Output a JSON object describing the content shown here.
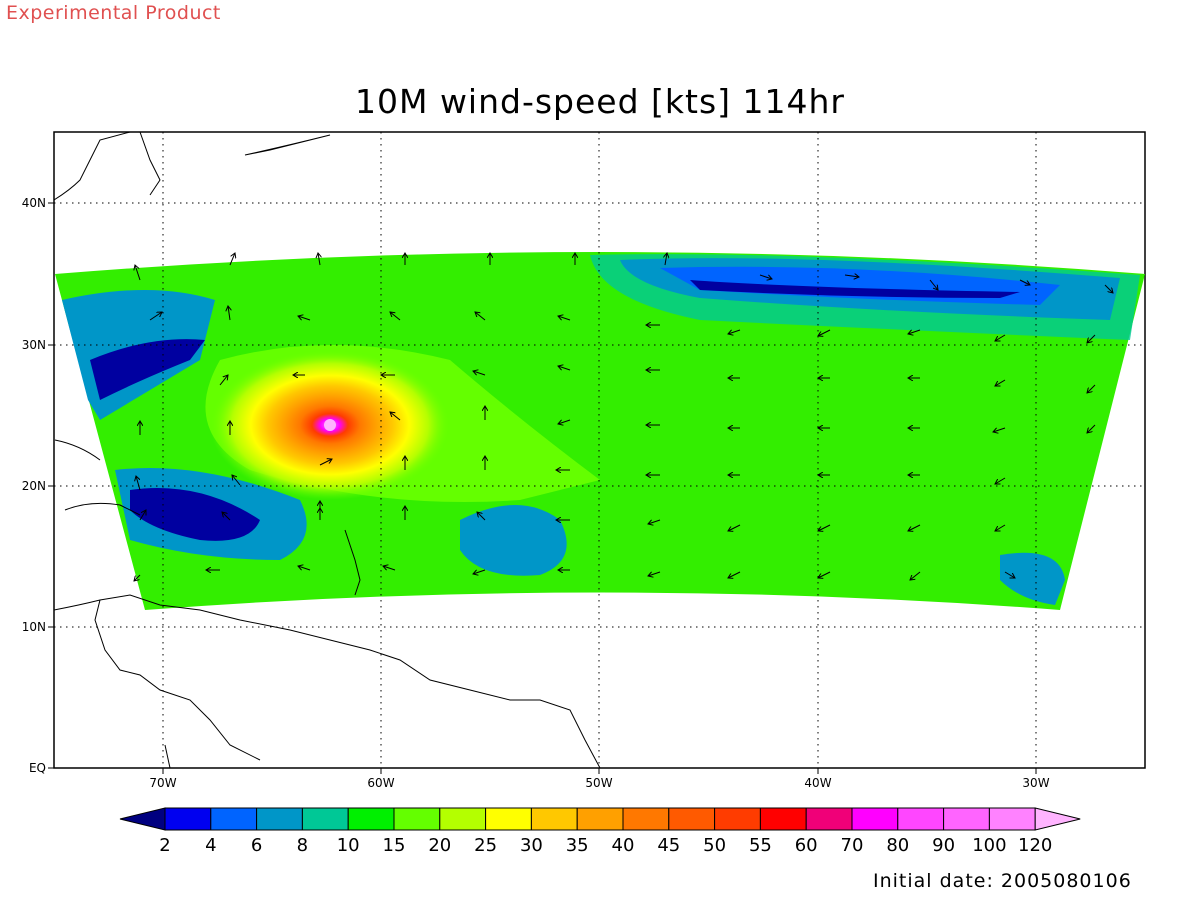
{
  "watermark": {
    "text": "Experimental Product",
    "color": "#e05050"
  },
  "map": {
    "title": "10M wind-speed [kts] 114hr",
    "lat_labels": [
      "40N",
      "30N",
      "20N",
      "10N",
      "EQ"
    ],
    "lon_labels": [
      "70W",
      "60W",
      "50W",
      "40W",
      "30W"
    ]
  },
  "colorbar": {
    "labels": [
      "2",
      "4",
      "6",
      "8",
      "10",
      "15",
      "20",
      "25",
      "30",
      "35",
      "40",
      "45",
      "50",
      "55",
      "60",
      "70",
      "80",
      "90",
      "100",
      "120"
    ],
    "colors": [
      "#000080",
      "#0000f0",
      "#0064ff",
      "#0096c8",
      "#00c896",
      "#00f000",
      "#64ff00",
      "#b4ff00",
      "#ffff00",
      "#ffc800",
      "#ffa000",
      "#ff7800",
      "#ff5a00",
      "#ff3c00",
      "#ff0000",
      "#f00078",
      "#ff00ff",
      "#ff46ff",
      "#ff64ff",
      "#ff82ff",
      "#ffb4ff"
    ]
  },
  "footer": {
    "initial_date": "Initial date: 2005080106"
  }
}
